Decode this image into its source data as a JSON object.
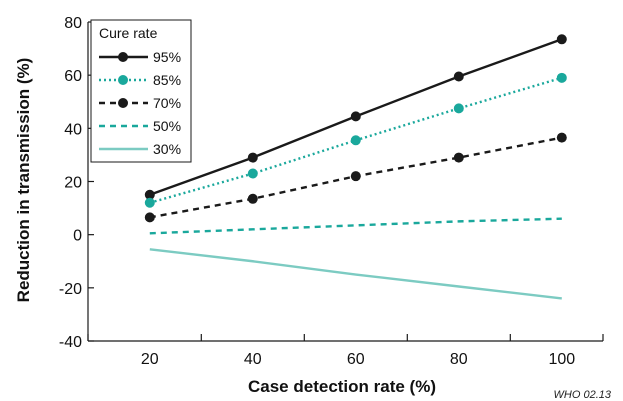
{
  "chart_data": {
    "type": "line",
    "xlabel": "Case detection rate (%)",
    "ylabel": "Reduction in transmission (%)",
    "x": [
      20,
      40,
      60,
      80,
      100
    ],
    "xlim": [
      8,
      108
    ],
    "ylim": [
      -40,
      80
    ],
    "x_ticks": [
      20,
      40,
      60,
      80,
      100
    ],
    "y_ticks": [
      -40,
      -20,
      0,
      20,
      40,
      60,
      80
    ],
    "x_tick_labels": [
      "20",
      "40",
      "60",
      "80",
      "100"
    ],
    "y_tick_labels": [
      "-40",
      "-20",
      "0",
      "20",
      "40",
      "60",
      "80"
    ],
    "grid": false,
    "legend": {
      "title": "Cure rate",
      "position": "top-left"
    },
    "series": [
      {
        "name": "95%",
        "values": [
          15,
          29,
          44.5,
          59.5,
          73.5
        ],
        "color": "#1a1a1a",
        "dash": "solid",
        "markers": true
      },
      {
        "name": "85%",
        "values": [
          12,
          23,
          35.5,
          47.5,
          59
        ],
        "color": "#1aa89c",
        "dash": "dotted",
        "markers": true
      },
      {
        "name": "70%",
        "values": [
          6.5,
          13.5,
          22,
          29,
          36.5
        ],
        "color": "#1a1a1a",
        "dash": "dashed",
        "markers": true
      },
      {
        "name": "50%",
        "values": [
          0.5,
          2,
          3.5,
          5,
          6
        ],
        "color": "#1aa89c",
        "dash": "dashed",
        "markers": false
      },
      {
        "name": "30%",
        "values": [
          -5.5,
          -10,
          -15,
          -19.5,
          -24
        ],
        "color": "#7ccbc2",
        "dash": "solid",
        "markers": false
      }
    ],
    "credit": "WHO 02.13"
  }
}
